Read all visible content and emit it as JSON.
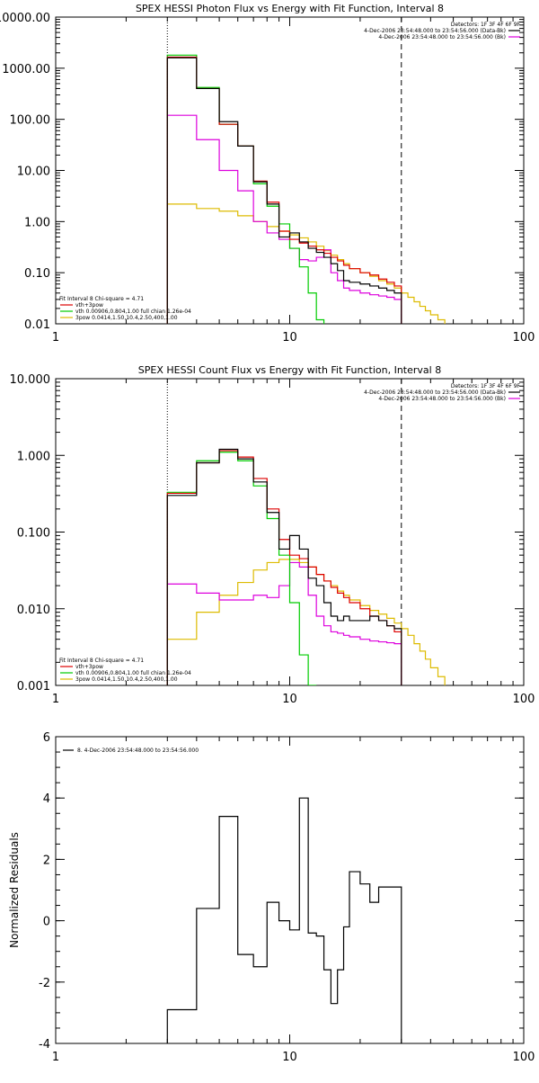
{
  "colors": {
    "black": "#000000",
    "red": "#dd0000",
    "green": "#00cc00",
    "magenta": "#dd00dd",
    "yellow": "#ddbb00"
  },
  "chart_data": [
    {
      "type": "line",
      "title": "SPEX HESSI Photon Flux vs Energy with Fit Function, Interval 8",
      "xscale": "log",
      "yscale": "log",
      "xlim": [
        1,
        100
      ],
      "ylim": [
        0.01,
        10000
      ],
      "x_ticks": [
        "1",
        "10",
        "100"
      ],
      "y_ticks": [
        "0.01",
        "0.10",
        "1.00",
        "10.00",
        "100.00",
        "1000.00",
        "10000.00"
      ],
      "y_tick_values": [
        0.01,
        0.1,
        1,
        10,
        100,
        1000,
        10000
      ],
      "vlines": [
        {
          "x": 3,
          "style": "dotted"
        },
        {
          "x": 30,
          "style": "dashed"
        }
      ],
      "legend_right": [
        {
          "text": "Detectors: 1F 3F 4F 6F 9F",
          "color": "#000000"
        },
        {
          "text": "4-Dec-2006 23:54:48.000 to 23:54:56.000 (Data-Bk)",
          "color": "#000000"
        },
        {
          "text": "4-Dec-2006 23:54:48.000 to 23:54:56.000 (Bk)",
          "color": "#dd00dd"
        }
      ],
      "legend_left": [
        {
          "text": "Fit Interval 8   Chi-square = 4.71",
          "color": "#000000"
        },
        {
          "text": "vth+3pow",
          "color": "#dd0000"
        },
        {
          "text": "vth 0.00906,0.804,1.00  full chian 1.26e-04",
          "color": "#00cc00"
        },
        {
          "text": "3pow 0.0414,1.50,10.4,2.50,400,1.00",
          "color": "#ddbb00"
        }
      ],
      "bin_edges": [
        3,
        4,
        5,
        6,
        7,
        8,
        9,
        10,
        11,
        12,
        13,
        14,
        15,
        16,
        17,
        18,
        20,
        22,
        24,
        26,
        28,
        30,
        32,
        34,
        36,
        38,
        40,
        43,
        46
      ],
      "series": [
        {
          "name": "4-Dec-2006 23:54:48.000 to 23:54:56.000 (Data-Bk)",
          "color": "#000000",
          "values": [
            1600,
            400,
            90,
            30,
            6,
            2.2,
            0.5,
            0.6,
            0.4,
            0.3,
            0.25,
            0.2,
            0.15,
            0.11,
            0.07,
            0.065,
            0.06,
            0.055,
            0.05,
            0.045,
            0.04
          ]
        },
        {
          "name": "vth+3pow",
          "color": "#dd0000",
          "values": [
            1650,
            400,
            80,
            30,
            6.2,
            2.4,
            0.65,
            0.45,
            0.38,
            0.33,
            0.28,
            0.24,
            0.2,
            0.17,
            0.14,
            0.12,
            0.1,
            0.09,
            0.075,
            0.065,
            0.055
          ]
        },
        {
          "name": "vth",
          "color": "#00cc00",
          "values": [
            1800,
            420,
            80,
            30,
            5.5,
            2,
            0.9,
            0.3,
            0.13,
            0.04,
            0.012
          ]
        },
        {
          "name": "4-Dec-2006 23:54:48.000 to 23:54:56.000 (Bk)",
          "color": "#dd00dd",
          "values": [
            120,
            40,
            10,
            4,
            1,
            0.6,
            0.45,
            0.3,
            0.18,
            0.17,
            0.2,
            0.28,
            0.1,
            0.07,
            0.05,
            0.045,
            0.04,
            0.037,
            0.035,
            0.033,
            0.03
          ]
        },
        {
          "name": "3pow",
          "color": "#ddbb00",
          "values": [
            2.2,
            1.8,
            1.6,
            1.3,
            1,
            0.8,
            0.65,
            0.55,
            0.48,
            0.4,
            0.33,
            0.27,
            0.22,
            0.18,
            0.15,
            0.12,
            0.1,
            0.085,
            0.07,
            0.06,
            0.05,
            0.04,
            0.033,
            0.027,
            0.022,
            0.018,
            0.015,
            0.012
          ]
        }
      ]
    },
    {
      "type": "line",
      "title": "SPEX HESSI Count Flux vs Energy with Fit Function, Interval 8",
      "xscale": "log",
      "yscale": "log",
      "xlim": [
        1,
        100
      ],
      "ylim": [
        0.001,
        10
      ],
      "x_ticks": [
        "1",
        "10",
        "100"
      ],
      "y_ticks": [
        "0.001",
        "0.010",
        "0.100",
        "1.000",
        "10.000"
      ],
      "y_tick_values": [
        0.001,
        0.01,
        0.1,
        1,
        10
      ],
      "vlines": [
        {
          "x": 3,
          "style": "dotted"
        },
        {
          "x": 30,
          "style": "dashed"
        }
      ],
      "legend_right": [
        {
          "text": "Detectors: 1F 3F 4F 6F 9F",
          "color": "#000000"
        },
        {
          "text": "4-Dec-2006 23:54:48.000 to 23:54:56.000 (Data-Bk)",
          "color": "#000000"
        },
        {
          "text": "4-Dec-2006 23:54:48.000 to 23:54:56.000 (Bk)",
          "color": "#dd00dd"
        }
      ],
      "legend_left": [
        {
          "text": "Fit Interval 8   Chi-square = 4.71",
          "color": "#000000"
        },
        {
          "text": "vth+3pow",
          "color": "#dd0000"
        },
        {
          "text": "vth 0.00906,0.804,1.00  full chian 1.26e-04",
          "color": "#00cc00"
        },
        {
          "text": "3pow 0.0414,1.50,10.4,2.50,400,1.00",
          "color": "#ddbb00"
        }
      ],
      "bin_edges": [
        3,
        4,
        5,
        6,
        7,
        8,
        9,
        10,
        11,
        12,
        13,
        14,
        15,
        16,
        17,
        18,
        20,
        22,
        24,
        26,
        28,
        30,
        32,
        34,
        36,
        38,
        40,
        43,
        46
      ],
      "series": [
        {
          "name": "4-Dec-2006 23:54:48.000 to 23:54:56.000 (Data-Bk)",
          "color": "#000000",
          "values": [
            0.3,
            0.8,
            1.2,
            0.9,
            0.45,
            0.18,
            0.06,
            0.09,
            0.06,
            0.025,
            0.02,
            0.012,
            0.008,
            0.007,
            0.008,
            0.007,
            0.007,
            0.008,
            0.007,
            0.006,
            0.0055
          ]
        },
        {
          "name": "vth+3pow",
          "color": "#dd0000",
          "values": [
            0.32,
            0.8,
            1.15,
            0.95,
            0.5,
            0.2,
            0.08,
            0.05,
            0.045,
            0.035,
            0.028,
            0.023,
            0.019,
            0.016,
            0.014,
            0.012,
            0.01,
            0.008,
            0.007,
            0.006,
            0.005
          ]
        },
        {
          "name": "vth",
          "color": "#00cc00",
          "values": [
            0.33,
            0.85,
            1.1,
            0.85,
            0.4,
            0.15,
            0.05,
            0.012,
            0.0025,
            0.0009
          ]
        },
        {
          "name": "4-Dec-2006 23:54:48.000 to 23:54:56.000 (Bk)",
          "color": "#dd00dd",
          "values": [
            0.021,
            0.016,
            0.013,
            0.013,
            0.015,
            0.014,
            0.02,
            0.04,
            0.035,
            0.015,
            0.008,
            0.006,
            0.005,
            0.0048,
            0.0045,
            0.0043,
            0.004,
            0.0038,
            0.0037,
            0.0036,
            0.0035
          ]
        },
        {
          "name": "3pow",
          "color": "#ddbb00",
          "values": [
            0.004,
            0.009,
            0.015,
            0.022,
            0.032,
            0.04,
            0.044,
            0.044,
            0.04,
            0.035,
            0.028,
            0.023,
            0.02,
            0.017,
            0.015,
            0.013,
            0.011,
            0.0095,
            0.0085,
            0.0075,
            0.0065,
            0.0055,
            0.0045,
            0.0035,
            0.0028,
            0.0022,
            0.0017,
            0.0013
          ]
        }
      ]
    },
    {
      "type": "line",
      "title": "",
      "xscale": "log",
      "yscale": "linear",
      "xlim": [
        1,
        100
      ],
      "ylim": [
        -4,
        6
      ],
      "x_ticks": [
        "1",
        "10",
        "100"
      ],
      "y_ticks": [
        "-4",
        "-2",
        "0",
        "2",
        "4",
        "6"
      ],
      "y_tick_values": [
        -4,
        -2,
        0,
        2,
        4,
        6
      ],
      "ylabel": "Normalized Residuals",
      "legend_left": [
        {
          "text": "8.  4-Dec-2006 23:54:48.000 to 23:54:56.000",
          "color": "#000000"
        }
      ],
      "bin_edges": [
        3,
        4,
        5,
        6,
        7,
        8,
        9,
        10,
        11,
        12,
        13,
        14,
        15,
        16,
        17,
        18,
        20,
        22,
        24,
        26,
        28,
        30
      ],
      "series": [
        {
          "name": "8.  4-Dec-2006 23:54:48.000 to 23:54:56.000",
          "color": "#000000",
          "values": [
            -2.9,
            0.4,
            3.4,
            -1.1,
            -1.5,
            0.6,
            0,
            -0.3,
            4.0,
            -0.4,
            -0.5,
            -1.6,
            -2.7,
            -1.6,
            -0.2,
            1.6,
            1.2,
            0.6,
            1.1,
            1.1,
            1.1
          ]
        }
      ]
    }
  ]
}
